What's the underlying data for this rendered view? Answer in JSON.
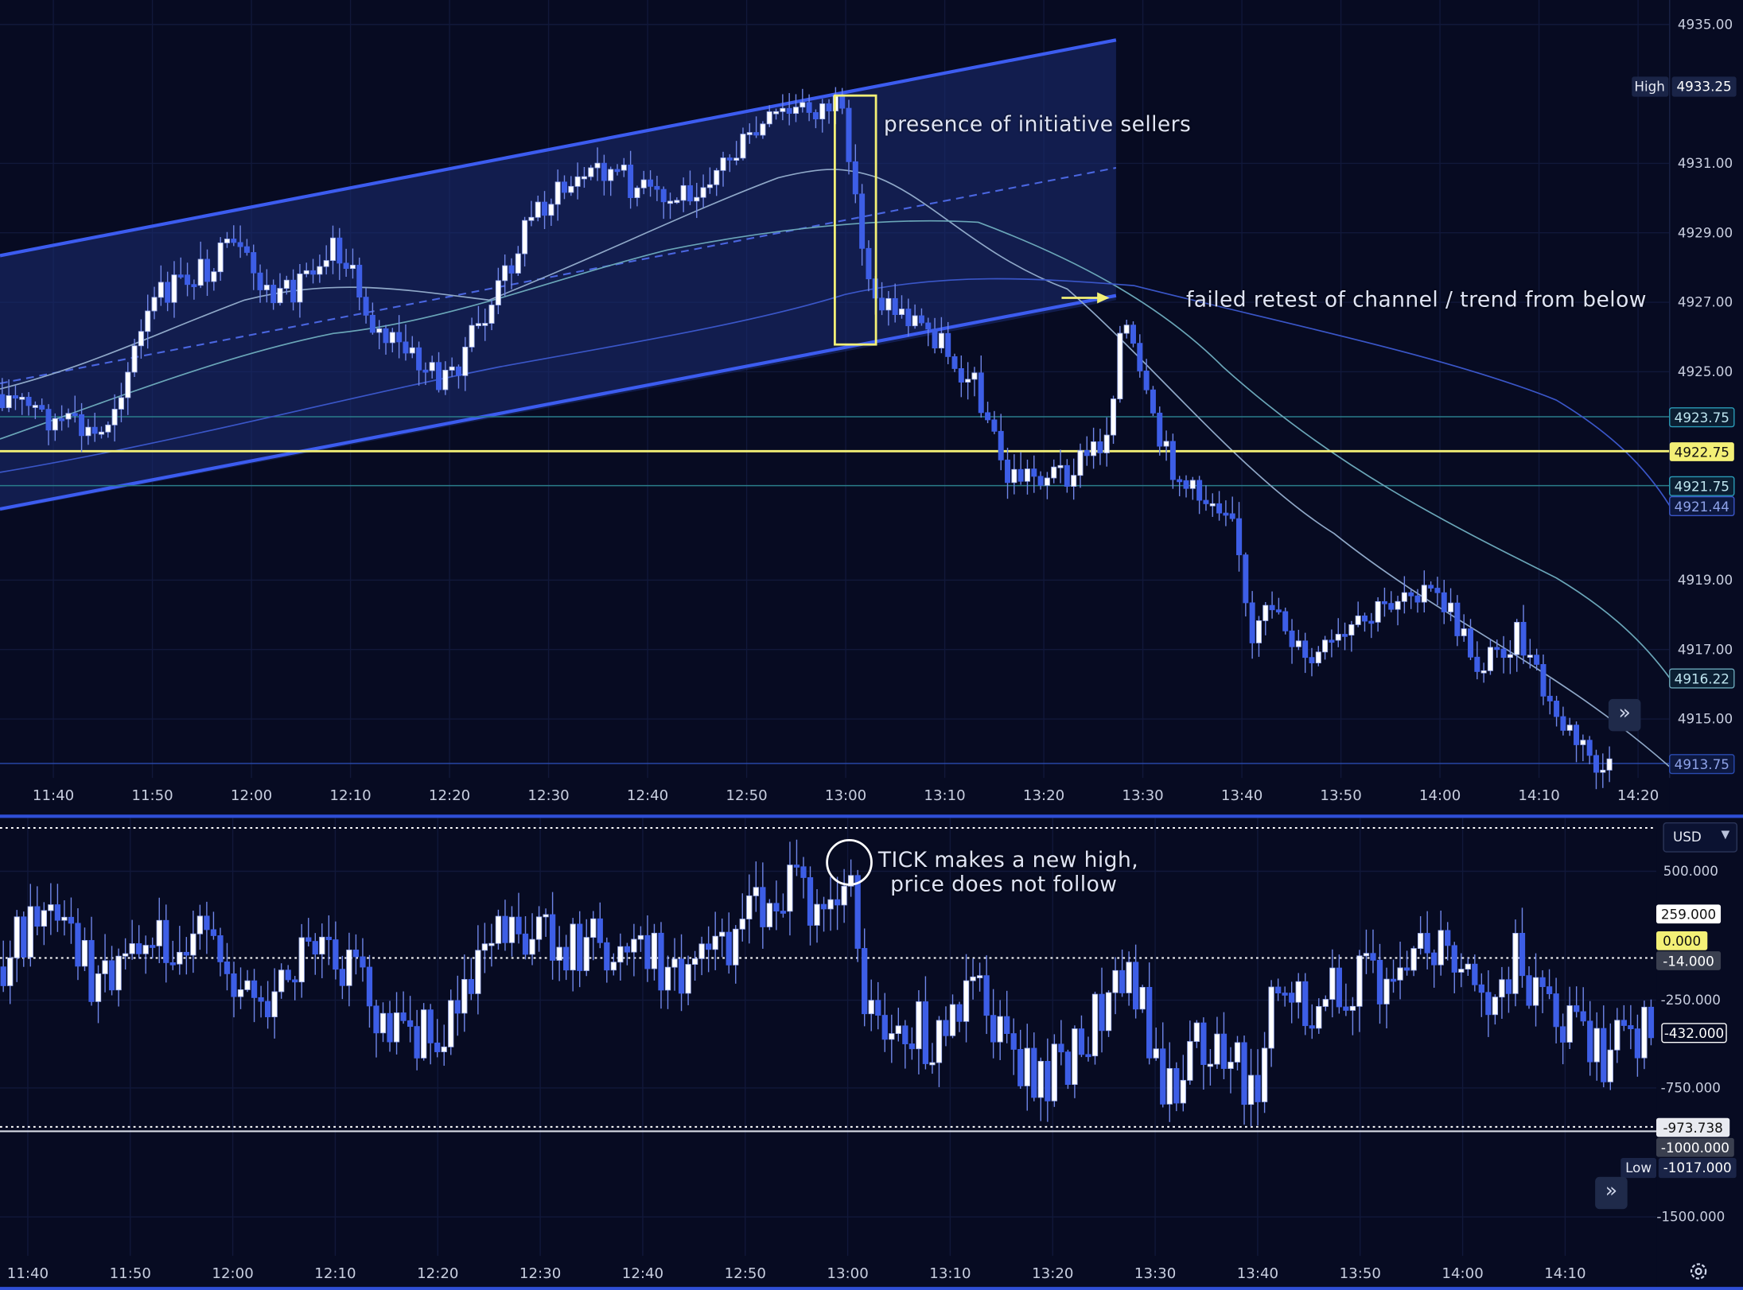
{
  "colors": {
    "background": "#070b22",
    "grid": "#11183a",
    "bull_fill": "#ffffff",
    "bear_fill": "#3d5ee6",
    "wick": "#6f86e8",
    "channel_fill": "#1b2e73",
    "channel_line": "#3c5cf0",
    "yellow": "#f3f076",
    "ema_fast": "#8fa8c8",
    "ema_mid": "#6aa6b8",
    "ema_slow": "#3a56c8",
    "separator": "#2f4fd6"
  },
  "upper_chart": {
    "price_axis": [
      "4935.00",
      "4931.00",
      "4929.00",
      "4927.00",
      "4925.00",
      "4919.00",
      "4917.00",
      "4915.00"
    ],
    "time_axis": [
      "11:40",
      "11:50",
      "12:00",
      "12:10",
      "12:20",
      "12:30",
      "12:40",
      "12:50",
      "13:00",
      "13:10",
      "13:20",
      "13:30",
      "13:40",
      "13:50",
      "14:00",
      "14:10",
      "14:20"
    ],
    "high_label": "High",
    "high_value": "4933.25",
    "price_badges": [
      "4923.75",
      "4922.75",
      "4921.75",
      "4921.44",
      "4916.22",
      "4913.75"
    ],
    "annotation_sellers": "presence of initiative sellers",
    "annotation_retest": "failed retest of channel / trend from below"
  },
  "lower_chart": {
    "currency": "USD",
    "value_axis": [
      "500.000",
      "-250.000",
      "-750.000",
      "-1500.000"
    ],
    "value_badges": [
      "259.000",
      "0.000",
      "-14.000",
      "-432.000",
      "-973.738",
      "-1000.000"
    ],
    "low_label": "Low",
    "low_value": "-1017.000",
    "time_axis": [
      "11:40",
      "11:50",
      "12:00",
      "12:10",
      "12:20",
      "12:30",
      "12:40",
      "12:50",
      "13:00",
      "13:10",
      "13:20",
      "13:30",
      "13:40",
      "13:50",
      "14:00",
      "14:10"
    ],
    "annotation_tick_line1": "TICK makes a new high,",
    "annotation_tick_line2": "price does not follow"
  },
  "icons": {
    "scroll_right": "double-chevron-right-icon",
    "settings": "gear-icon"
  }
}
